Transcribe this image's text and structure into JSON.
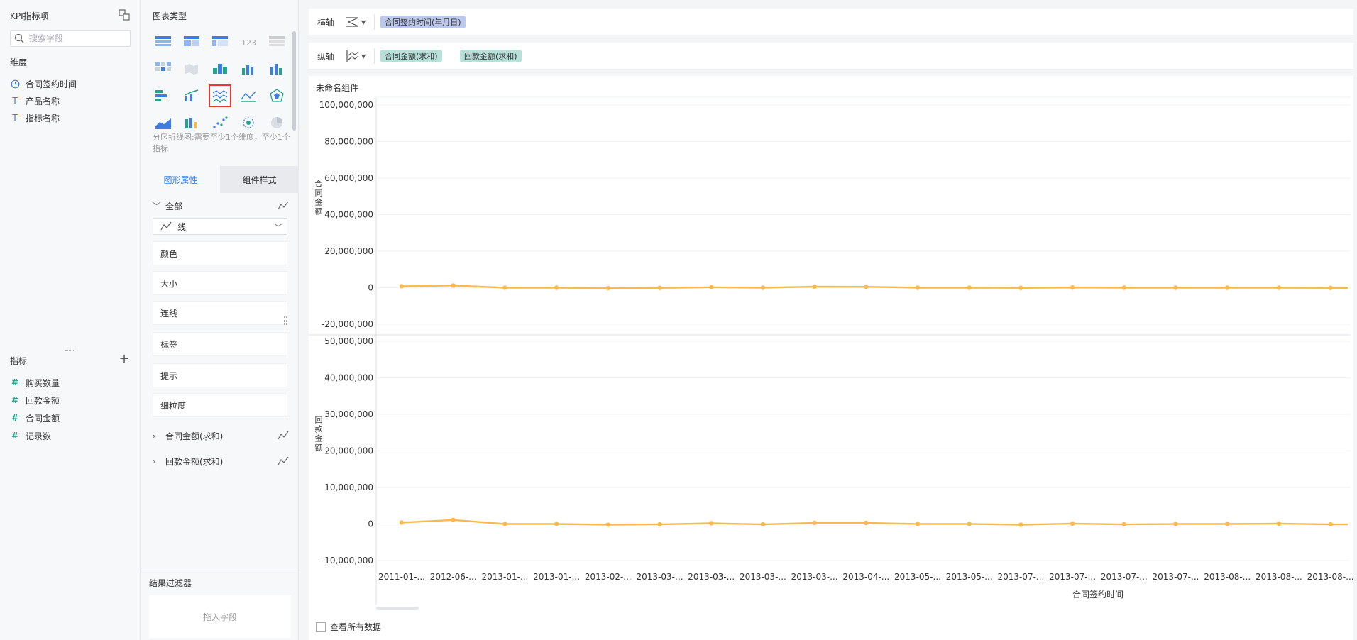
{
  "left_panel": {
    "title": "KPI指标项",
    "search_placeholder": "搜索字段",
    "dimensions_label": "维度",
    "dimensions": [
      {
        "label": "合同签约时间",
        "icon": "clock-icon"
      },
      {
        "label": "产品名称",
        "icon": "text-type-icon"
      },
      {
        "label": "指标名称",
        "icon": "text-type-icon"
      }
    ],
    "measures_label": "指标",
    "measures": [
      {
        "label": "购买数量"
      },
      {
        "label": "回款金额"
      },
      {
        "label": "合同金额"
      },
      {
        "label": "记录数"
      }
    ]
  },
  "middle_panel": {
    "chart_types_title": "图表类型",
    "chart_hint": "分区折线图:需要至少1个维度，至少1个指标",
    "tabs": [
      {
        "label": "图形属性",
        "active": true
      },
      {
        "label": "组件样式",
        "active": false
      }
    ],
    "all_group": "全部",
    "mark_type": "线",
    "properties": [
      "颜色",
      "大小",
      "连线",
      "标签",
      "提示",
      "细粒度"
    ],
    "series_groups": [
      "合同金额(求和)",
      "回款金额(求和)"
    ],
    "result_filter_title": "结果过滤器",
    "drop_zone_label": "拖入字段"
  },
  "x_axis_bar": {
    "label": "横轴",
    "fields": [
      "合同签约时间(年月日)"
    ]
  },
  "y_axis_bar": {
    "label": "纵轴",
    "fields": [
      "合同金额(求和)",
      "回款金额(求和)"
    ]
  },
  "canvas": {
    "component_title": "未命名组件",
    "view_all_data_label": "查看所有数据"
  },
  "colors": {
    "line": "#f9b94d",
    "accent": "#3d7ee6",
    "dimension_pill": "#bcc8ec",
    "measure_pill": "#b7e0d9",
    "selected_outline": "#e53935"
  },
  "chart_data": {
    "type": "line",
    "xlabel": "合同签约时间",
    "categories": [
      "2011-01-...",
      "2012-06-...",
      "2013-01-...",
      "2013-01-...",
      "2013-02-...",
      "2013-03-...",
      "2013-03-...",
      "2013-03-...",
      "2013-03-...",
      "2013-04-...",
      "2013-05-...",
      "2013-05-...",
      "2013-07-...",
      "2013-07-...",
      "2013-07-...",
      "2013-07-...",
      "2013-08-...",
      "2013-08-...",
      "2013-08-..."
    ],
    "panels": [
      {
        "ylabel": "合同金额",
        "ylim": [
          -20000000,
          100000000
        ],
        "ticks": [
          "100,000,000",
          "80,000,000",
          "60,000,000",
          "40,000,000",
          "20,000,000",
          "0",
          "-20,000,000"
        ],
        "tick_values": [
          100000000,
          80000000,
          60000000,
          40000000,
          20000000,
          0,
          -20000000
        ],
        "values": [
          800000,
          1200000,
          0,
          0,
          -200000,
          -100000,
          200000,
          0,
          600000,
          500000,
          0,
          0,
          -100000,
          100000,
          0,
          0,
          0,
          0,
          -100000
        ]
      },
      {
        "ylabel": "回款金额",
        "ylim": [
          -10000000,
          50000000
        ],
        "ticks": [
          "50,000,000",
          "40,000,000",
          "30,000,000",
          "20,000,000",
          "10,000,000",
          "0",
          "-10,000,000"
        ],
        "tick_values": [
          50000000,
          40000000,
          30000000,
          20000000,
          10000000,
          0,
          -10000000
        ],
        "values": [
          400000,
          1100000,
          0,
          0,
          -200000,
          -100000,
          200000,
          -100000,
          300000,
          300000,
          0,
          0,
          -200000,
          100000,
          -100000,
          0,
          0,
          100000,
          -100000
        ]
      }
    ]
  }
}
